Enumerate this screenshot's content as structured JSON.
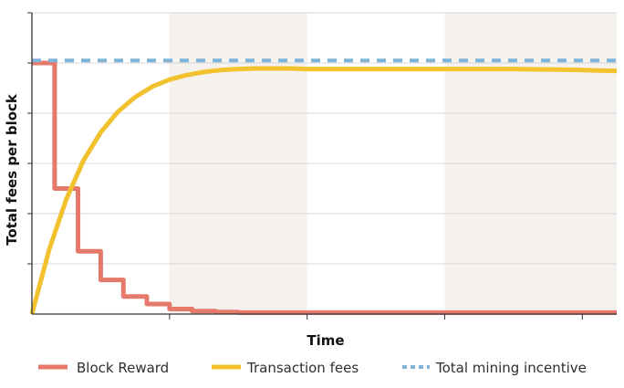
{
  "chart_data": {
    "type": "line",
    "xlabel": "Time",
    "ylabel": "Total fees per block",
    "xlim": [
      0,
      8.5
    ],
    "ylim": [
      0,
      6
    ],
    "grid": true,
    "legend_placement": "bottom",
    "series": [
      {
        "name": "Block Reward",
        "kind": "step",
        "color": "#e6796a",
        "x": [
          0,
          0.33,
          0.67,
          1.0,
          1.33,
          1.67,
          2.0,
          2.33,
          2.67,
          3.0,
          3.33,
          3.67,
          4.0,
          8.5
        ],
        "y": [
          5.0,
          2.5,
          1.25,
          0.68,
          0.35,
          0.2,
          0.1,
          0.06,
          0.04,
          0.03,
          0.03,
          0.03,
          0.03,
          0.03
        ]
      },
      {
        "name": "Transaction fees",
        "kind": "curve",
        "color": "#f2c12e",
        "x": [
          0,
          0.25,
          0.5,
          0.75,
          1.0,
          1.25,
          1.5,
          1.75,
          2.0,
          2.25,
          2.5,
          2.75,
          3.0,
          3.25,
          3.5,
          3.75,
          4.0,
          4.5,
          5.0,
          5.5,
          6.0,
          6.5,
          7.0,
          7.5,
          8.0,
          8.5
        ],
        "y": [
          0.0,
          1.28,
          2.29,
          3.06,
          3.62,
          4.03,
          4.32,
          4.53,
          4.67,
          4.76,
          4.82,
          4.86,
          4.88,
          4.89,
          4.89,
          4.89,
          4.88,
          4.88,
          4.88,
          4.88,
          4.88,
          4.88,
          4.88,
          4.87,
          4.86,
          4.84
        ]
      },
      {
        "name": "Total mining incentive",
        "kind": "dashed",
        "color": "#7fb3d8",
        "x": [
          0,
          8.5
        ],
        "y": [
          5.05,
          5.05
        ]
      }
    ]
  },
  "colors": {
    "axis": "#333333",
    "grid": "#d8d8d8",
    "band": "#f5f1ec"
  }
}
